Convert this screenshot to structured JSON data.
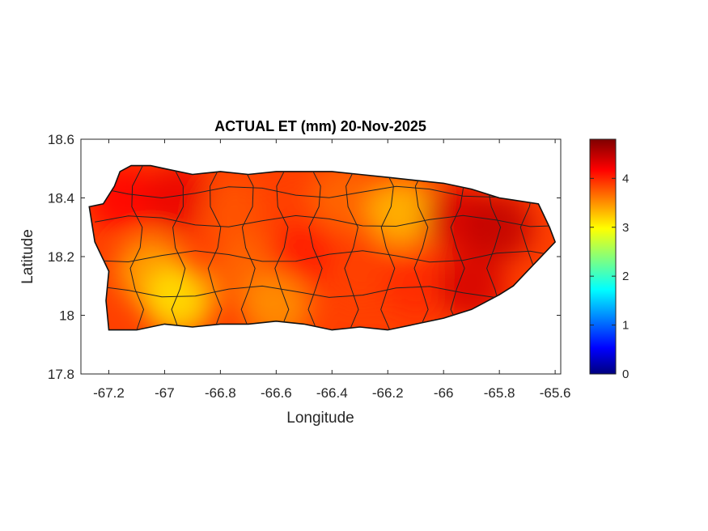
{
  "chart_data": {
    "type": "heatmap",
    "title": "ACTUAL ET (mm) 20-Nov-2025",
    "xlabel": "Longitude",
    "ylabel": "Latitude",
    "xlim": [
      -67.3,
      -65.58
    ],
    "ylim": [
      17.8,
      18.6
    ],
    "xticks": [
      -67.2,
      -67,
      -66.8,
      -66.6,
      -66.4,
      -66.2,
      -66,
      -65.8,
      -65.6
    ],
    "xtick_labels": [
      "-67.2",
      "-67",
      "-66.8",
      "-66.6",
      "-66.4",
      "-66.2",
      "-66",
      "-65.8",
      "-65.6"
    ],
    "yticks": [
      17.8,
      18,
      18.2,
      18.4,
      18.6
    ],
    "ytick_labels": [
      "17.8",
      "18",
      "18.2",
      "18.4",
      "18.6"
    ],
    "colormap": "jet",
    "colorbar": {
      "range": [
        0,
        4.8
      ],
      "ticks": [
        0,
        1,
        2,
        3,
        4
      ],
      "tick_labels": [
        "0",
        "1",
        "2",
        "3",
        "4"
      ]
    },
    "grid": false,
    "island_outline": [
      [
        -67.27,
        18.37
      ],
      [
        -67.22,
        18.38
      ],
      [
        -67.18,
        18.44
      ],
      [
        -67.16,
        18.49
      ],
      [
        -67.12,
        18.51
      ],
      [
        -67.05,
        18.51
      ],
      [
        -67.0,
        18.5
      ],
      [
        -66.9,
        18.48
      ],
      [
        -66.8,
        18.49
      ],
      [
        -66.7,
        18.48
      ],
      [
        -66.6,
        18.49
      ],
      [
        -66.5,
        18.49
      ],
      [
        -66.4,
        18.49
      ],
      [
        -66.3,
        18.48
      ],
      [
        -66.2,
        18.47
      ],
      [
        -66.1,
        18.46
      ],
      [
        -66.0,
        18.45
      ],
      [
        -65.9,
        18.43
      ],
      [
        -65.8,
        18.4
      ],
      [
        -65.66,
        18.38
      ],
      [
        -65.62,
        18.3
      ],
      [
        -65.6,
        18.25
      ],
      [
        -65.65,
        18.2
      ],
      [
        -65.7,
        18.15
      ],
      [
        -65.75,
        18.1
      ],
      [
        -65.8,
        18.07
      ],
      [
        -65.9,
        18.02
      ],
      [
        -66.0,
        17.99
      ],
      [
        -66.1,
        17.97
      ],
      [
        -66.2,
        17.95
      ],
      [
        -66.3,
        17.96
      ],
      [
        -66.4,
        17.95
      ],
      [
        -66.5,
        17.97
      ],
      [
        -66.6,
        17.98
      ],
      [
        -66.7,
        17.97
      ],
      [
        -66.8,
        17.97
      ],
      [
        -66.9,
        17.96
      ],
      [
        -67.0,
        17.97
      ],
      [
        -67.1,
        17.95
      ],
      [
        -67.2,
        17.95
      ],
      [
        -67.21,
        18.05
      ],
      [
        -67.2,
        18.15
      ],
      [
        -67.25,
        18.25
      ],
      [
        -67.27,
        18.37
      ]
    ],
    "et_field": [
      {
        "lon": -67.15,
        "lat": 18.4,
        "value": 4.2
      },
      {
        "lon": -66.95,
        "lat": 18.4,
        "value": 4.3
      },
      {
        "lon": -66.75,
        "lat": 18.35,
        "value": 3.8
      },
      {
        "lon": -66.55,
        "lat": 18.38,
        "value": 3.9
      },
      {
        "lon": -66.35,
        "lat": 18.4,
        "value": 3.7
      },
      {
        "lon": -66.15,
        "lat": 18.35,
        "value": 3.3
      },
      {
        "lon": -65.95,
        "lat": 18.33,
        "value": 4.4
      },
      {
        "lon": -65.8,
        "lat": 18.3,
        "value": 4.5
      },
      {
        "lon": -67.05,
        "lat": 18.15,
        "value": 3.4
      },
      {
        "lon": -66.95,
        "lat": 18.05,
        "value": 3.1
      },
      {
        "lon": -66.7,
        "lat": 18.15,
        "value": 3.7
      },
      {
        "lon": -66.5,
        "lat": 18.2,
        "value": 4.1
      },
      {
        "lon": -66.3,
        "lat": 18.15,
        "value": 3.9
      },
      {
        "lon": -66.1,
        "lat": 18.1,
        "value": 4.0
      },
      {
        "lon": -65.9,
        "lat": 18.1,
        "value": 4.4
      },
      {
        "lon": -66.6,
        "lat": 18.03,
        "value": 3.5
      }
    ]
  }
}
